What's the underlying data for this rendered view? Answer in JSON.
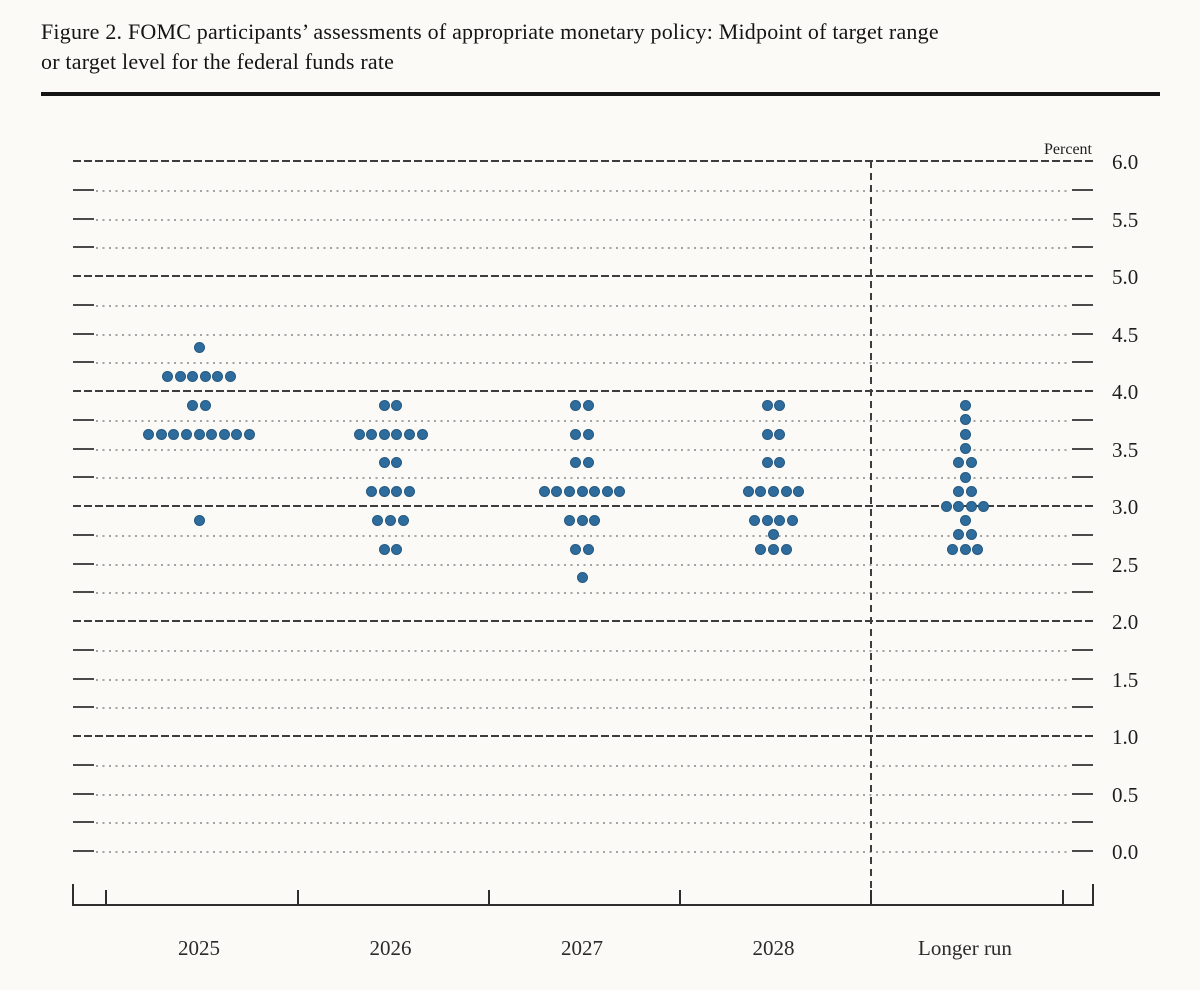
{
  "figure": {
    "title_line1": "Figure 2. FOMC participants’ assessments of appropriate monetary policy: Midpoint of target range",
    "title_line2": "or target level for the federal funds rate"
  },
  "chart_data": {
    "type": "scatter",
    "subtype": "fomc-dot-plot",
    "title": "FOMC participants’ assessments of appropriate monetary policy: Midpoint of target range or target level for the federal funds rate",
    "unit_label": "Percent",
    "ylim": [
      0.0,
      6.0
    ],
    "grid_step": 0.25,
    "label_step": 0.5,
    "y_tick_labels": [
      "6.0",
      "5.5",
      "5.0",
      "4.5",
      "4.0",
      "3.5",
      "3.0",
      "2.5",
      "2.0",
      "1.5",
      "1.0",
      "0.5",
      "0.0"
    ],
    "solid_gridlines": [
      6.0,
      5.0,
      4.0,
      3.0,
      2.0,
      1.0
    ],
    "legend_position": "none",
    "dashed_divider_after_category": "2028",
    "dot_color": "#2e6c9e",
    "categories": [
      "2025",
      "2026",
      "2027",
      "2028",
      "Longer run"
    ],
    "series": [
      {
        "category": "2025",
        "dots": [
          {
            "rate": 4.375,
            "count": 1
          },
          {
            "rate": 4.125,
            "count": 6
          },
          {
            "rate": 3.875,
            "count": 2
          },
          {
            "rate": 3.625,
            "count": 9
          },
          {
            "rate": 2.875,
            "count": 1
          }
        ]
      },
      {
        "category": "2026",
        "dots": [
          {
            "rate": 3.875,
            "count": 2
          },
          {
            "rate": 3.625,
            "count": 6
          },
          {
            "rate": 3.375,
            "count": 2
          },
          {
            "rate": 3.125,
            "count": 4
          },
          {
            "rate": 2.875,
            "count": 3
          },
          {
            "rate": 2.625,
            "count": 2
          }
        ]
      },
      {
        "category": "2027",
        "dots": [
          {
            "rate": 3.875,
            "count": 2
          },
          {
            "rate": 3.625,
            "count": 2
          },
          {
            "rate": 3.375,
            "count": 2
          },
          {
            "rate": 3.125,
            "count": 7
          },
          {
            "rate": 2.875,
            "count": 3
          },
          {
            "rate": 2.625,
            "count": 2
          },
          {
            "rate": 2.375,
            "count": 1
          }
        ]
      },
      {
        "category": "2028",
        "dots": [
          {
            "rate": 3.875,
            "count": 2
          },
          {
            "rate": 3.625,
            "count": 2
          },
          {
            "rate": 3.375,
            "count": 2
          },
          {
            "rate": 3.125,
            "count": 5
          },
          {
            "rate": 2.875,
            "count": 4
          },
          {
            "rate": 2.75,
            "count": 1
          },
          {
            "rate": 2.625,
            "count": 3
          }
        ]
      },
      {
        "category": "Longer run",
        "dots": [
          {
            "rate": 3.875,
            "count": 1
          },
          {
            "rate": 3.75,
            "count": 1
          },
          {
            "rate": 3.625,
            "count": 1
          },
          {
            "rate": 3.5,
            "count": 1
          },
          {
            "rate": 3.375,
            "count": 2
          },
          {
            "rate": 3.25,
            "count": 1
          },
          {
            "rate": 3.125,
            "count": 2
          },
          {
            "rate": 3.0,
            "count": 4
          },
          {
            "rate": 2.875,
            "count": 1
          },
          {
            "rate": 2.75,
            "count": 2
          },
          {
            "rate": 2.625,
            "count": 3
          }
        ]
      }
    ]
  }
}
